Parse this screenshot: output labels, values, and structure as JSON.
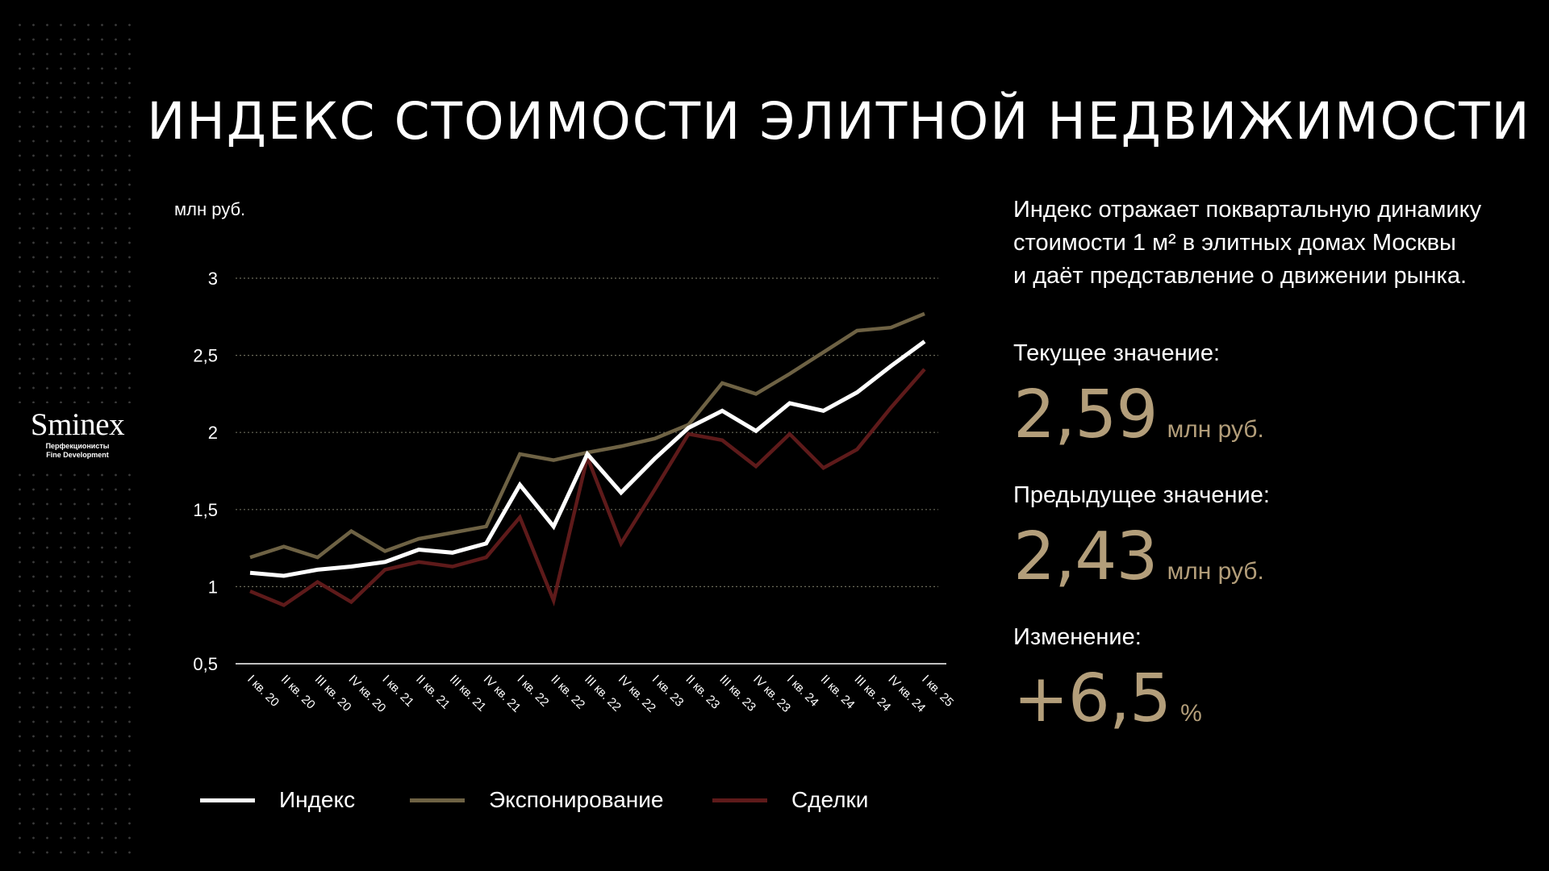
{
  "title": "ИНДЕКС СТОИМОСТИ ЭЛИТНОЙ НЕДВИЖИМОСТИ",
  "logo": {
    "name": "Sminex",
    "tagline_line1": "Перфекционисты",
    "tagline_line2": "Fine Development"
  },
  "info": {
    "description_lines": [
      "Индекс отражает поквартальную динамику",
      "стоимости 1 м² в элитных домах Москвы",
      "и даёт представление о движении рынка."
    ],
    "current_label": "Текущее значение:",
    "current_value": "2,59",
    "current_unit": "млн руб.",
    "previous_label": "Предыдущее значение:",
    "previous_value": "2,43",
    "previous_unit": "млн руб.",
    "change_label": "Изменение:",
    "change_value": "+6,5",
    "change_unit": "%"
  },
  "colors": {
    "background": "#000000",
    "index": "#ffffff",
    "listing": "#6e6244",
    "deals": "#5e1a1a",
    "accent": "#b39e7a",
    "grid": "#6a6a5a"
  },
  "chart_data": {
    "type": "line",
    "ylabel": "млн руб.",
    "ylim": [
      0.5,
      3
    ],
    "yticks": [
      0.5,
      1,
      1.5,
      2,
      2.5,
      3
    ],
    "ytick_labels": [
      "0,5",
      "1",
      "1,5",
      "2",
      "2,5",
      "3"
    ],
    "grid": "dotted-horizontal",
    "legend_position": "bottom",
    "categories": [
      "I кв. 20",
      "II кв. 20",
      "III кв. 20",
      "IV кв. 20",
      "I кв. 21",
      "II кв. 21",
      "III кв. 21",
      "IV кв. 21",
      "I кв. 22",
      "II кв. 22",
      "III кв. 22",
      "IV кв. 22",
      "I кв. 23",
      "II кв. 23",
      "III кв. 23",
      "IV кв. 23",
      "I кв. 24",
      "II кв. 24",
      "III кв. 24",
      "IV кв. 24",
      "I кв. 25"
    ],
    "series": [
      {
        "name": "Экспонирование",
        "color": "#6e6244",
        "values": [
          1.19,
          1.26,
          1.19,
          1.36,
          1.23,
          1.31,
          1.35,
          1.39,
          1.86,
          1.82,
          1.87,
          1.91,
          1.96,
          2.05,
          2.32,
          2.25,
          2.38,
          2.52,
          2.66,
          2.68,
          2.77
        ]
      },
      {
        "name": "Сделки",
        "color": "#5e1a1a",
        "values": [
          0.97,
          0.88,
          1.03,
          0.9,
          1.11,
          1.16,
          1.13,
          1.19,
          1.45,
          0.91,
          1.84,
          1.28,
          1.63,
          1.99,
          1.95,
          1.78,
          1.99,
          1.77,
          1.89,
          2.16,
          2.41
        ]
      },
      {
        "name": "Индекс",
        "color": "#ffffff",
        "values": [
          1.09,
          1.07,
          1.11,
          1.13,
          1.16,
          1.24,
          1.22,
          1.28,
          1.66,
          1.39,
          1.86,
          1.61,
          1.83,
          2.03,
          2.14,
          2.01,
          2.19,
          2.14,
          2.26,
          2.43,
          2.59
        ]
      }
    ]
  }
}
